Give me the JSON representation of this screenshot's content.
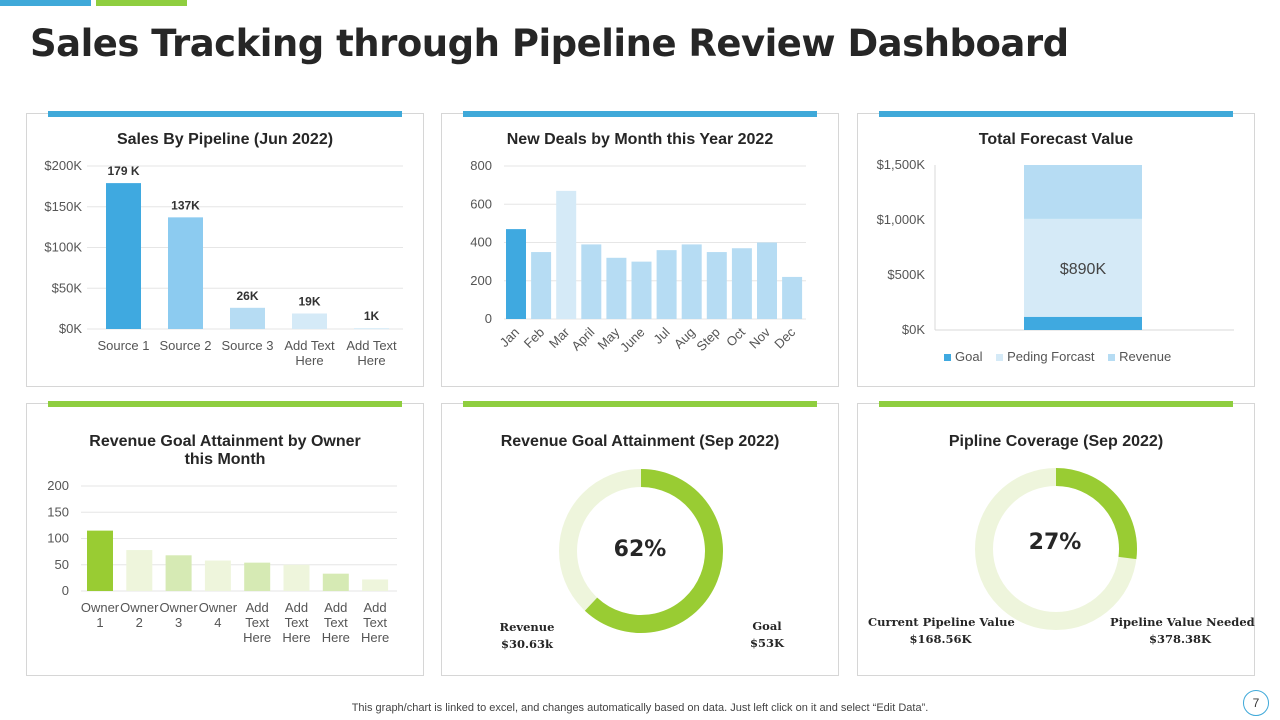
{
  "page": {
    "title": "Sales Tracking through Pipeline Review Dashboard",
    "footnote": "This graph/chart is linked to excel,  and changes automatically based on data. Just left click on it and select “Edit Data”.",
    "page_number": "7"
  },
  "colors": {
    "blue_accent": "#3fa9d9",
    "green_accent": "#8fce3f",
    "dark_blue": "#3fa9e0",
    "mid_blue": "#8ccbf0",
    "light_blue": "#b6dcf3",
    "pale_blue": "#d5eaf7",
    "bright_green": "#99cc33",
    "pale_green": "#eef5dc",
    "mid_green": "#d6eab4"
  },
  "chart_data": [
    {
      "type": "bar",
      "title": "Sales By Pipeline (Jun 2022)",
      "categories": [
        "Source 1",
        "Source 2",
        "Source 3",
        "Add Text Here",
        "Add Text Here"
      ],
      "values": [
        179,
        137,
        26,
        19,
        1
      ],
      "data_labels": [
        "179 K",
        "137K",
        "26K",
        "19K",
        "1K"
      ],
      "y_ticks": [
        "$0K",
        "$50K",
        "$100K",
        "$150K",
        "$200K"
      ],
      "ylim": [
        0,
        200
      ],
      "grid": true
    },
    {
      "type": "bar",
      "title": "New Deals by Month this Year 2022",
      "categories": [
        "Jan",
        "Feb",
        "Mar",
        "April",
        "May",
        "June",
        "Jul",
        "Aug",
        "Step",
        "Oct",
        "Nov",
        "Dec"
      ],
      "values": [
        470,
        350,
        670,
        390,
        320,
        300,
        360,
        390,
        350,
        370,
        400,
        220
      ],
      "y_ticks": [
        "0",
        "200",
        "400",
        "600",
        "800"
      ],
      "ylim": [
        0,
        800
      ],
      "grid": true
    },
    {
      "type": "bar",
      "stacked": true,
      "title": "Total Forecast Value",
      "series": [
        {
          "name": "Goal",
          "value": 120,
          "color": "#3fa9e0"
        },
        {
          "name": "Peding Forcast",
          "value": 890,
          "color": "#d5eaf7"
        },
        {
          "name": "Revenue",
          "value": 490,
          "color": "#b6dcf3"
        }
      ],
      "center_label": "$890K",
      "y_ticks": [
        "$0K",
        "$500K",
        "$1,000K",
        "$1,500K"
      ],
      "ylim": [
        0,
        1500
      ],
      "legend_position": "bottom"
    },
    {
      "type": "bar",
      "title": "Revenue Goal Attainment by Owner this Month",
      "categories": [
        "Owner 1",
        "Owner 2",
        "Owner 3",
        "Owner 4",
        "Add Text Here",
        "Add Text Here",
        "Add Text Here",
        "Add Text Here"
      ],
      "values": [
        115,
        78,
        68,
        58,
        54,
        50,
        33,
        22
      ],
      "y_ticks": [
        "0",
        "50",
        "100",
        "150",
        "200"
      ],
      "ylim": [
        0,
        200
      ],
      "grid": true
    },
    {
      "type": "pie",
      "donut": true,
      "title": "Revenue Goal Attainment (Sep 2022)",
      "percent": 62,
      "percent_label": "62%",
      "labels": [
        {
          "name": "Revenue",
          "value": "$30.63k"
        },
        {
          "name": "Goal",
          "value": "$53K"
        }
      ]
    },
    {
      "type": "pie",
      "donut": true,
      "title": "Pipline Coverage (Sep 2022)",
      "percent": 27,
      "percent_label": "27%",
      "labels": [
        {
          "name": "Current Pipeline Value",
          "value": "$168.56K"
        },
        {
          "name": "Pipeline Value Needed",
          "value": "$378.38K"
        }
      ]
    }
  ]
}
